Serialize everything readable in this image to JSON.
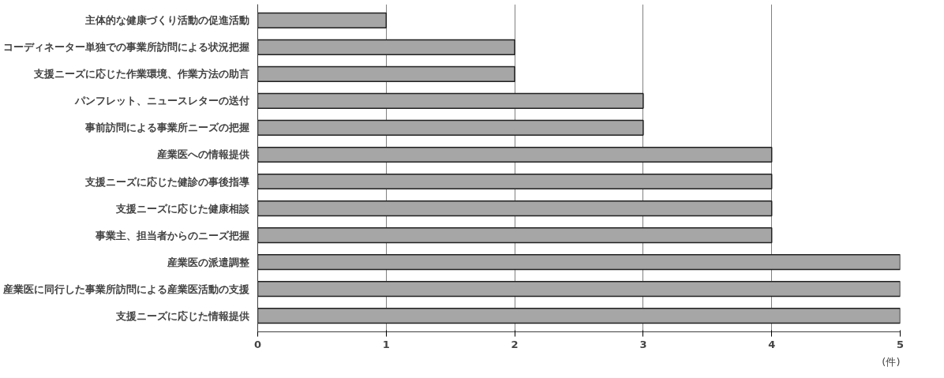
{
  "chart_data": {
    "type": "bar",
    "orientation": "horizontal",
    "categories": [
      "主体的な健康づくり活動の促進活動",
      "コーディネーター単独での事業所訪問による状況把握",
      "支援ニーズに応じた作業環境、作業方法の助言",
      "パンフレット、ニュースレターの送付",
      "事前訪問による事業所ニーズの把握",
      "産業医への情報提供",
      "支援ニーズに応じた健診の事後指導",
      "支援ニーズに応じた健康相談",
      "事業主、担当者からのニーズ把握",
      "産業医の派遣調整",
      "産業医に同行した事業所訪問による産業医活動の支援",
      "支援ニーズに応じた情報提供"
    ],
    "values": [
      1,
      2,
      2,
      3,
      3,
      4,
      4,
      4,
      4,
      5,
      5,
      5
    ],
    "color": "#a6a6a6",
    "xlim": [
      0,
      5
    ],
    "xticks": [
      0,
      1,
      2,
      3,
      4,
      5
    ],
    "xlabel": "(件)",
    "grid": "x"
  }
}
